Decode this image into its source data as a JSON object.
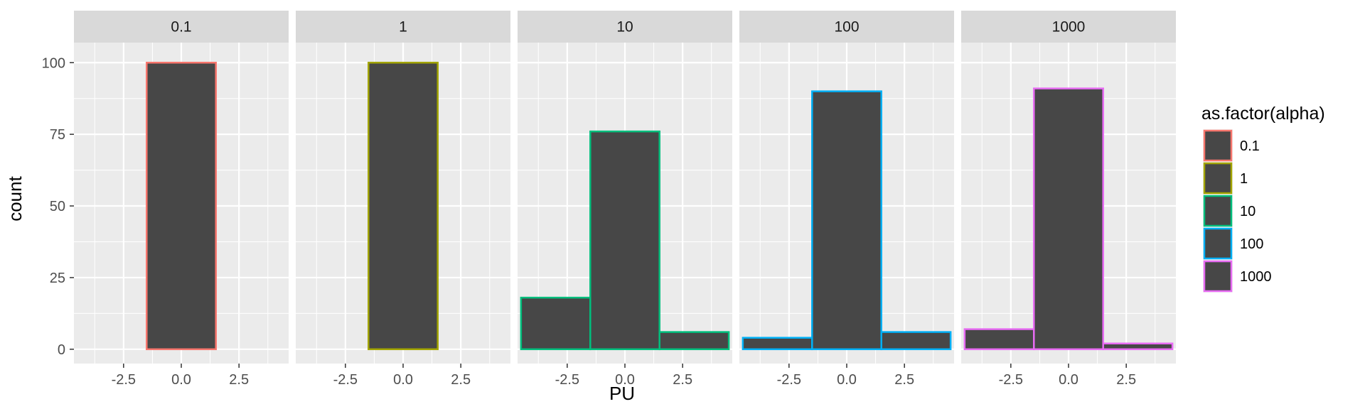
{
  "chart_data": {
    "type": "bar",
    "xlabel": "PU",
    "ylabel": "count",
    "xlim": [
      -4.65,
      4.65
    ],
    "ylim": [
      -5,
      107
    ],
    "x_ticks": [
      -2.5,
      0.0,
      2.5
    ],
    "x_tick_labels": [
      "-2.5",
      "0.0",
      "2.5"
    ],
    "y_ticks": [
      0,
      25,
      50,
      75,
      100
    ],
    "y_tick_labels": [
      "0",
      "25",
      "50",
      "75",
      "100"
    ],
    "bins": [
      [
        -4.5,
        -1.5
      ],
      [
        -1.5,
        1.5
      ],
      [
        1.5,
        4.5
      ]
    ],
    "fill_color": "#474747",
    "panel_bg": "#ebebeb",
    "strip_bg": "#d9d9d9",
    "grid": true,
    "legend_position": "right",
    "legend_title": "as.factor(alpha)",
    "series": [
      {
        "name": "0.1",
        "color": "#f8766d",
        "values": [
          0,
          100,
          0
        ]
      },
      {
        "name": "1",
        "color": "#a3a500",
        "values": [
          0,
          100,
          0
        ]
      },
      {
        "name": "10",
        "color": "#00bf7d",
        "values": [
          18,
          76,
          6
        ]
      },
      {
        "name": "100",
        "color": "#00b0f6",
        "values": [
          4,
          90,
          6
        ]
      },
      {
        "name": "1000",
        "color": "#e76bf3",
        "values": [
          7,
          91,
          2
        ]
      }
    ]
  }
}
